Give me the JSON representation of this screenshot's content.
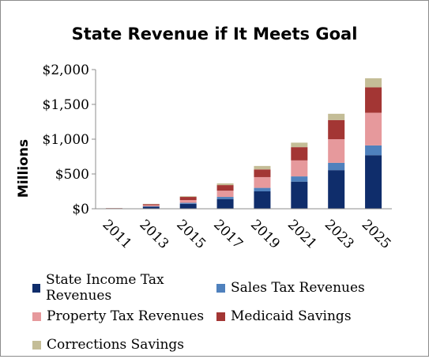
{
  "chart_data": {
    "type": "bar",
    "stacked": true,
    "title": "State Revenue if It Meets Goal",
    "xlabel": "",
    "ylabel": "Millions",
    "ylim": [
      0,
      2000
    ],
    "yticks": [
      "$0",
      "$500",
      "$1,000",
      "$1,500",
      "$2,000"
    ],
    "ytick_values": [
      0,
      500,
      1000,
      1500,
      2000
    ],
    "grid": false,
    "legend_position": "bottom",
    "categories": [
      "2011",
      "2013",
      "2015",
      "2017",
      "2019",
      "2021",
      "2023",
      "2025"
    ],
    "series": [
      {
        "name": "State Income Tax Revenues",
        "color": "#0f2d6b",
        "values": [
          3,
          30,
          70,
          140,
          250,
          390,
          555,
          770
        ]
      },
      {
        "name": "Sales Tax Revenues",
        "color": "#4f81bd",
        "values": [
          1,
          6,
          15,
          30,
          50,
          75,
          105,
          140
        ]
      },
      {
        "name": "Property Tax Revenues",
        "color": "#e6999c",
        "values": [
          2,
          15,
          40,
          90,
          155,
          230,
          340,
          470
        ]
      },
      {
        "name": "Medicaid Savings",
        "color": "#a33634",
        "values": [
          3,
          15,
          45,
          80,
          110,
          190,
          275,
          365
        ]
      },
      {
        "name": "Corrections Savings",
        "color": "#c4bd97",
        "values": [
          1,
          4,
          10,
          25,
          50,
          65,
          90,
          130
        ]
      }
    ]
  }
}
